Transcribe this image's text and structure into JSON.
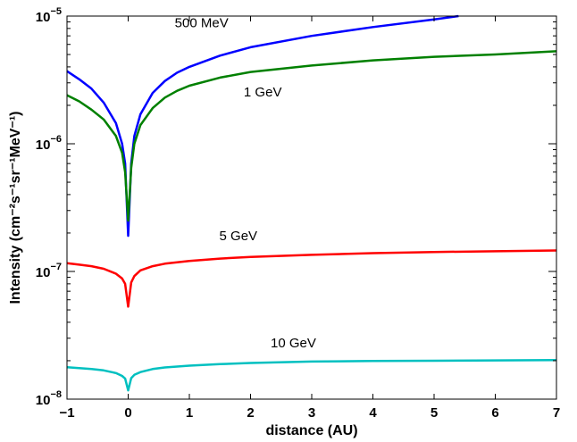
{
  "chart_data": {
    "type": "line",
    "title": "",
    "xlabel": "distance (AU)",
    "ylabel": "Intensity (cm⁻²s⁻¹sr⁻¹MeV⁻¹)",
    "xlim": [
      -1,
      7
    ],
    "ylim": [
      1e-08,
      1e-05
    ],
    "yscale": "log",
    "grid": false,
    "legend": "none",
    "x_ticks": [
      "−1",
      "0",
      "1",
      "2",
      "3",
      "4",
      "5",
      "6",
      "7"
    ],
    "y_ticks": [
      {
        "base": "10",
        "exp": "−8"
      },
      {
        "base": "10",
        "exp": "−7"
      },
      {
        "base": "10",
        "exp": "−6"
      },
      {
        "base": "10",
        "exp": "−5"
      }
    ],
    "series": [
      {
        "name": "500 MeV",
        "color": "#0000ff",
        "x": [
          -1,
          -0.8,
          -0.6,
          -0.4,
          -0.2,
          -0.1,
          -0.05,
          0,
          0.05,
          0.1,
          0.2,
          0.4,
          0.6,
          0.8,
          1,
          1.5,
          2,
          3,
          4,
          5,
          5.4
        ],
        "y": [
          3.7e-06,
          3.2e-06,
          2.7e-06,
          2.1e-06,
          1.45e-06,
          1e-06,
          7e-07,
          1.9e-07,
          7e-07,
          1.15e-06,
          1.7e-06,
          2.5e-06,
          3.1e-06,
          3.6e-06,
          4e-06,
          4.9e-06,
          5.7e-06,
          7e-06,
          8.2e-06,
          9.4e-06,
          1e-05
        ]
      },
      {
        "name": "1 GeV",
        "color": "#008000",
        "x": [
          -1,
          -0.8,
          -0.6,
          -0.4,
          -0.2,
          -0.1,
          -0.05,
          0,
          0.05,
          0.1,
          0.2,
          0.4,
          0.6,
          0.8,
          1,
          1.5,
          2,
          3,
          4,
          5,
          6,
          7
        ],
        "y": [
          2.4e-06,
          2.15e-06,
          1.85e-06,
          1.55e-06,
          1.15e-06,
          8.5e-07,
          6e-07,
          2.5e-07,
          6.5e-07,
          1e-06,
          1.4e-06,
          1.9e-06,
          2.3e-06,
          2.6e-06,
          2.85e-06,
          3.3e-06,
          3.65e-06,
          4.1e-06,
          4.5e-06,
          4.8e-06,
          5e-06,
          5.3e-06
        ]
      },
      {
        "name": "5 GeV",
        "color": "#ff0000",
        "x": [
          -1,
          -0.8,
          -0.6,
          -0.4,
          -0.2,
          -0.1,
          -0.05,
          0,
          0.05,
          0.1,
          0.2,
          0.4,
          0.6,
          0.8,
          1,
          1.5,
          2,
          3,
          4,
          5,
          6,
          7
        ],
        "y": [
          1.16e-07,
          1.13e-07,
          1.1e-07,
          1.05e-07,
          9.6e-08,
          8.8e-08,
          8e-08,
          5.3e-08,
          8.2e-08,
          9.2e-08,
          1.02e-07,
          1.1e-07,
          1.15e-07,
          1.18e-07,
          1.21e-07,
          1.26e-07,
          1.3e-07,
          1.35e-07,
          1.39e-07,
          1.42e-07,
          1.44e-07,
          1.46e-07
        ]
      },
      {
        "name": "10 GeV",
        "color": "#00c0c0",
        "x": [
          -1,
          -0.8,
          -0.6,
          -0.4,
          -0.2,
          -0.1,
          -0.05,
          0,
          0.05,
          0.1,
          0.2,
          0.4,
          0.6,
          0.8,
          1,
          1.5,
          2,
          3,
          4,
          5,
          6,
          7
        ],
        "y": [
          1.78e-08,
          1.75e-08,
          1.72e-08,
          1.68e-08,
          1.6e-08,
          1.52e-08,
          1.45e-08,
          1.17e-08,
          1.46e-08,
          1.55e-08,
          1.63e-08,
          1.72e-08,
          1.77e-08,
          1.8e-08,
          1.83e-08,
          1.88e-08,
          1.92e-08,
          1.97e-08,
          1.99e-08,
          2e-08,
          2.01e-08,
          2.02e-08
        ]
      }
    ],
    "annotations": [
      {
        "text": "500 MeV",
        "x": 1.2,
        "y": 8.2e-06
      },
      {
        "text": "1 GeV",
        "x": 2.2,
        "y": 2.35e-06
      },
      {
        "text": "5 GeV",
        "x": 1.8,
        "y": 1.75e-07
      },
      {
        "text": "10 GeV",
        "x": 2.7,
        "y": 2.55e-08
      }
    ]
  }
}
